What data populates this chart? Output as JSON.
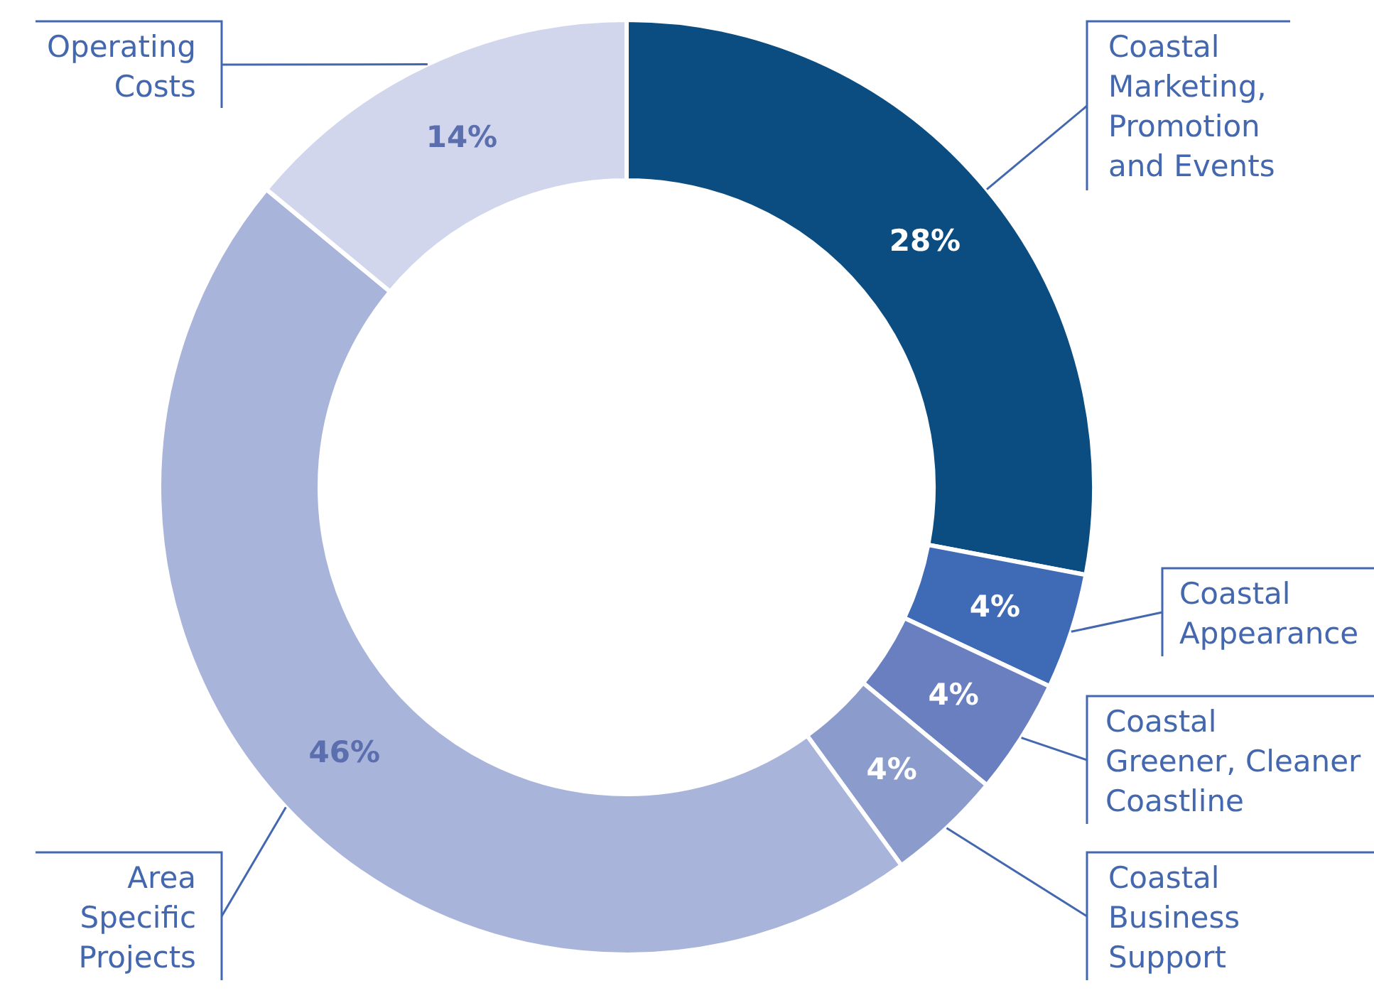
{
  "chart_data": {
    "type": "donut",
    "categories": [
      "Coastal Marketing, Promotion and Events",
      "Coastal Appearance",
      "Coastal Greener, Cleaner Coastline",
      "Coastal Business Support",
      "Area Specific Projects",
      "Operating Costs"
    ],
    "values": [
      28,
      4,
      4,
      4,
      46,
      14
    ],
    "value_labels": [
      "28%",
      "4%",
      "4%",
      "4%",
      "46%",
      "14%"
    ],
    "colors": [
      "#0b4d80",
      "#3f6ab5",
      "#6a7fc0",
      "#8b9ccc",
      "#a9b4da",
      "#d2d6ec"
    ],
    "legend": false
  }
}
